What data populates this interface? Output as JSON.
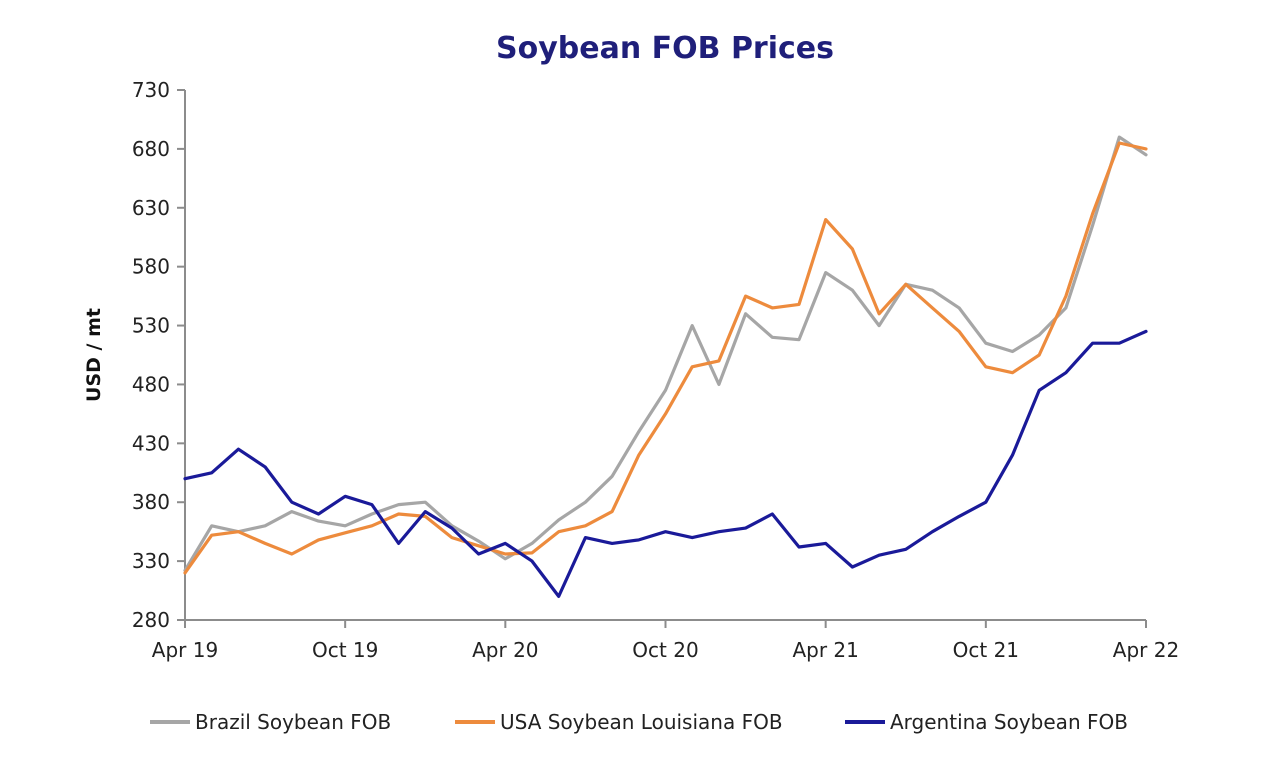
{
  "chart_data": {
    "type": "line",
    "title": "Soybean FOB Prices",
    "xlabel": "",
    "ylabel": "USD / mt",
    "ylim": [
      280,
      730
    ],
    "yticks": [
      280,
      330,
      380,
      430,
      480,
      530,
      580,
      630,
      680,
      730
    ],
    "xlim": [
      "2019-04",
      "2022-04"
    ],
    "xticks": [
      {
        "x": "2019-04",
        "label": "Apr 19"
      },
      {
        "x": "2019-10",
        "label": "Oct 19"
      },
      {
        "x": "2020-04",
        "label": "Apr 20"
      },
      {
        "x": "2020-10",
        "label": "Oct 20"
      },
      {
        "x": "2021-04",
        "label": "Apr 21"
      },
      {
        "x": "2021-10",
        "label": "Oct 21"
      },
      {
        "x": "2022-04",
        "label": "Apr 22"
      }
    ],
    "grid": false,
    "legend": "bottom",
    "series": [
      {
        "name": "Brazil Soybean FOB",
        "color": "#a6a6a6",
        "points": [
          [
            "2019-04",
            322
          ],
          [
            "2019-05",
            360
          ],
          [
            "2019-06",
            355
          ],
          [
            "2019-07",
            360
          ],
          [
            "2019-08",
            372
          ],
          [
            "2019-09",
            364
          ],
          [
            "2019-10",
            360
          ],
          [
            "2019-11",
            370
          ],
          [
            "2019-12",
            378
          ],
          [
            "2020-01",
            380
          ],
          [
            "2020-02",
            360
          ],
          [
            "2020-03",
            347
          ],
          [
            "2020-04",
            332
          ],
          [
            "2020-05",
            345
          ],
          [
            "2020-06",
            365
          ],
          [
            "2020-07",
            380
          ],
          [
            "2020-08",
            402
          ],
          [
            "2020-09",
            440
          ],
          [
            "2020-10",
            475
          ],
          [
            "2020-11",
            530
          ],
          [
            "2020-12",
            480
          ],
          [
            "2021-01",
            540
          ],
          [
            "2021-02",
            520
          ],
          [
            "2021-03",
            518
          ],
          [
            "2021-04",
            575
          ],
          [
            "2021-05",
            560
          ],
          [
            "2021-06",
            530
          ],
          [
            "2021-07",
            565
          ],
          [
            "2021-08",
            560
          ],
          [
            "2021-09",
            545
          ],
          [
            "2021-10",
            515
          ],
          [
            "2021-11",
            508
          ],
          [
            "2021-12",
            522
          ],
          [
            "2022-01",
            545
          ],
          [
            "2022-02",
            615
          ],
          [
            "2022-03",
            690
          ],
          [
            "2022-04",
            675
          ]
        ]
      },
      {
        "name": "USA Soybean Louisiana FOB",
        "color": "#ed8b3d",
        "points": [
          [
            "2019-04",
            320
          ],
          [
            "2019-05",
            352
          ],
          [
            "2019-06",
            355
          ],
          [
            "2019-07",
            345
          ],
          [
            "2019-08",
            336
          ],
          [
            "2019-09",
            348
          ],
          [
            "2019-10",
            354
          ],
          [
            "2019-11",
            360
          ],
          [
            "2019-12",
            370
          ],
          [
            "2020-01",
            368
          ],
          [
            "2020-02",
            350
          ],
          [
            "2020-03",
            343
          ],
          [
            "2020-04",
            336
          ],
          [
            "2020-05",
            337
          ],
          [
            "2020-06",
            355
          ],
          [
            "2020-07",
            360
          ],
          [
            "2020-08",
            372
          ],
          [
            "2020-09",
            420
          ],
          [
            "2020-10",
            455
          ],
          [
            "2020-11",
            495
          ],
          [
            "2020-12",
            500
          ],
          [
            "2021-01",
            555
          ],
          [
            "2021-02",
            545
          ],
          [
            "2021-03",
            548
          ],
          [
            "2021-04",
            620
          ],
          [
            "2021-05",
            595
          ],
          [
            "2021-06",
            540
          ],
          [
            "2021-07",
            565
          ],
          [
            "2021-08",
            545
          ],
          [
            "2021-09",
            525
          ],
          [
            "2021-10",
            495
          ],
          [
            "2021-11",
            490
          ],
          [
            "2021-12",
            505
          ],
          [
            "2022-01",
            555
          ],
          [
            "2022-02",
            625
          ],
          [
            "2022-03",
            685
          ],
          [
            "2022-04",
            680
          ]
        ]
      },
      {
        "name": "Argentina Soybean FOB",
        "color": "#1a1a99",
        "points": [
          [
            "2019-04",
            400
          ],
          [
            "2019-05",
            405
          ],
          [
            "2019-06",
            425
          ],
          [
            "2019-07",
            410
          ],
          [
            "2019-08",
            380
          ],
          [
            "2019-09",
            370
          ],
          [
            "2019-10",
            385
          ],
          [
            "2019-11",
            378
          ],
          [
            "2019-12",
            345
          ],
          [
            "2020-01",
            372
          ],
          [
            "2020-02",
            358
          ],
          [
            "2020-03",
            336
          ],
          [
            "2020-04",
            345
          ],
          [
            "2020-05",
            330
          ],
          [
            "2020-06",
            300
          ],
          [
            "2020-07",
            350
          ],
          [
            "2020-08",
            345
          ],
          [
            "2020-09",
            348
          ],
          [
            "2020-10",
            355
          ],
          [
            "2020-11",
            350
          ],
          [
            "2020-12",
            355
          ],
          [
            "2021-01",
            358
          ],
          [
            "2021-02",
            370
          ],
          [
            "2021-03",
            342
          ],
          [
            "2021-04",
            345
          ],
          [
            "2021-05",
            325
          ],
          [
            "2021-06",
            335
          ],
          [
            "2021-07",
            340
          ],
          [
            "2021-08",
            355
          ],
          [
            "2021-09",
            368
          ],
          [
            "2021-10",
            380
          ],
          [
            "2021-11",
            420
          ],
          [
            "2021-12",
            475
          ],
          [
            "2022-01",
            490
          ],
          [
            "2022-02",
            515
          ],
          [
            "2022-03",
            515
          ],
          [
            "2022-04",
            525
          ]
        ]
      }
    ]
  }
}
